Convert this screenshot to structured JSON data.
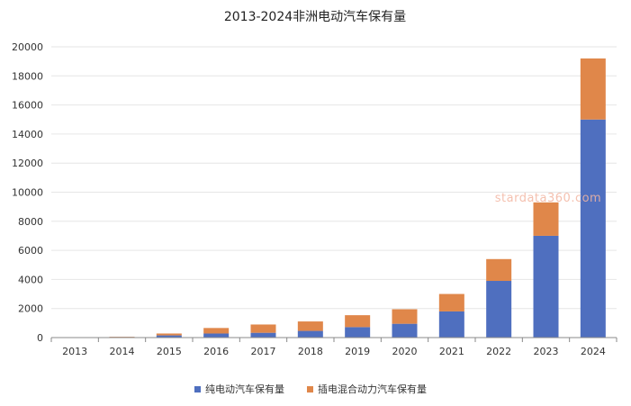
{
  "chart_data": {
    "type": "bar",
    "stacked": true,
    "title": "2013-2024非洲电动汽车保有量",
    "categories": [
      "2013",
      "2014",
      "2015",
      "2016",
      "2017",
      "2018",
      "2019",
      "2020",
      "2021",
      "2022",
      "2023",
      "2024"
    ],
    "series": [
      {
        "name": "纯电动汽车保有量",
        "color": "#4f6fbf",
        "values": [
          20,
          40,
          150,
          280,
          330,
          460,
          720,
          950,
          1800,
          3900,
          7000,
          15000
        ]
      },
      {
        "name": "插电混合动力汽车保有量",
        "color": "#e0874a",
        "values": [
          0,
          20,
          130,
          380,
          570,
          650,
          820,
          1000,
          1200,
          1500,
          2300,
          4200
        ]
      }
    ],
    "xlabel": "",
    "ylabel": "",
    "ylim": [
      0,
      20000
    ],
    "yticks": [
      0,
      2000,
      4000,
      6000,
      8000,
      10000,
      12000,
      14000,
      16000,
      18000,
      20000
    ],
    "grid": true,
    "legend_position": "bottom"
  },
  "watermark": "stardata360.com"
}
